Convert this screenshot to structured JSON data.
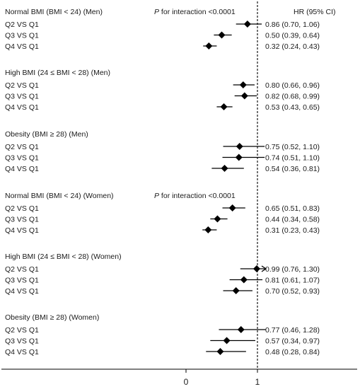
{
  "chart_data": {
    "type": "forest",
    "header": {
      "hr_column": "HR (95% CI)"
    },
    "x_axis": {
      "ticks": [
        "0",
        "1"
      ],
      "tick_values": [
        0,
        1
      ],
      "reference_line": 1,
      "xlim": [
        -0.9,
        1.4
      ]
    },
    "interaction_notes": [
      {
        "prefix": "P",
        "text": " for interaction <0.0001",
        "group_index": 0
      },
      {
        "prefix": "P",
        "text": " for interaction <0.0001",
        "group_index": 3
      }
    ],
    "groups": [
      {
        "title": "Normal BMI (BMI < 24)  (Men)",
        "rows": [
          {
            "label": "Q2 VS Q1",
            "hr": 0.86,
            "lo": 0.7,
            "hi": 1.06,
            "text": "0.86 (0.70, 1.06)"
          },
          {
            "label": "Q3 VS Q1",
            "hr": 0.5,
            "lo": 0.39,
            "hi": 0.64,
            "text": "0.50 (0.39, 0.64)"
          },
          {
            "label": "Q4 VS Q1",
            "hr": 0.32,
            "lo": 0.24,
            "hi": 0.43,
            "text": "0.32 (0.24, 0.43)"
          }
        ]
      },
      {
        "title": "High BMI (24 ≤ BMI < 28) (Men)",
        "rows": [
          {
            "label": "Q2 VS Q1",
            "hr": 0.8,
            "lo": 0.66,
            "hi": 0.96,
            "text": "0.80 (0.66, 0.96)"
          },
          {
            "label": "Q3 VS Q1",
            "hr": 0.82,
            "lo": 0.68,
            "hi": 0.99,
            "text": "0.82 (0.68, 0.99)"
          },
          {
            "label": "Q4 VS Q1",
            "hr": 0.53,
            "lo": 0.43,
            "hi": 0.65,
            "text": "0.53 (0.43, 0.65)"
          }
        ]
      },
      {
        "title": "Obesity (BMI ≥ 28) (Men)",
        "rows": [
          {
            "label": "Q2 VS Q1",
            "hr": 0.75,
            "lo": 0.52,
            "hi": 1.1,
            "text": "0.75 (0.52, 1.10)"
          },
          {
            "label": "Q3 VS Q1",
            "hr": 0.74,
            "lo": 0.51,
            "hi": 1.1,
            "text": "0.74 (0.51, 1.10)"
          },
          {
            "label": "Q4 VS Q1",
            "hr": 0.54,
            "lo": 0.36,
            "hi": 0.81,
            "text": "0.54 (0.36, 0.81)"
          }
        ]
      },
      {
        "title": "Normal BMI (BMI < 24) (Women)",
        "rows": [
          {
            "label": "Q2 VS Q1",
            "hr": 0.65,
            "lo": 0.51,
            "hi": 0.83,
            "text": "0.65 (0.51, 0.83)"
          },
          {
            "label": "Q3 VS Q1",
            "hr": 0.44,
            "lo": 0.34,
            "hi": 0.58,
            "text": "0.44 (0.34, 0.58)"
          },
          {
            "label": "Q4 VS Q1",
            "hr": 0.31,
            "lo": 0.23,
            "hi": 0.43,
            "text": "0.31 (0.23, 0.43)"
          }
        ]
      },
      {
        "title": "High BMI (24 ≤ BMI < 28) (Women)",
        "rows": [
          {
            "label": "Q2 VS Q1",
            "hr": 0.99,
            "lo": 0.76,
            "hi": 1.3,
            "text": "0.99 (0.76, 1.30)",
            "arrow": true
          },
          {
            "label": "Q3 VS Q1",
            "hr": 0.81,
            "lo": 0.61,
            "hi": 1.07,
            "text": "0.81 (0.61, 1.07)"
          },
          {
            "label": "Q4 VS Q1",
            "hr": 0.7,
            "lo": 0.52,
            "hi": 0.93,
            "text": "0.70 (0.52, 0.93)"
          }
        ]
      },
      {
        "title": "Obesity (BMI ≥ 28) (Women)",
        "rows": [
          {
            "label": "Q2 VS Q1",
            "hr": 0.77,
            "lo": 0.46,
            "hi": 1.28,
            "text": "0.77 (0.46, 1.28)"
          },
          {
            "label": "Q3 VS Q1",
            "hr": 0.57,
            "lo": 0.34,
            "hi": 0.97,
            "text": "0.57 (0.34, 0.97)"
          },
          {
            "label": "Q4 VS Q1",
            "hr": 0.48,
            "lo": 0.28,
            "hi": 0.84,
            "text": "0.48 (0.28, 0.84)"
          }
        ]
      }
    ],
    "colors": {
      "marker": "#000000",
      "line": "#000000",
      "text": "#1a1a1a"
    }
  }
}
